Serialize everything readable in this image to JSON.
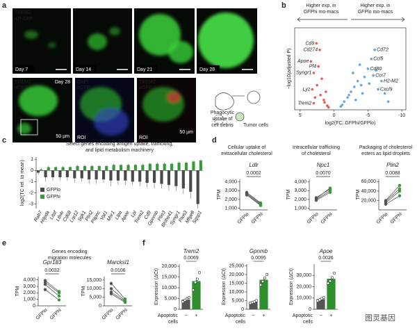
{
  "panel_a": {
    "label": "a",
    "legend": [
      "TREM2",
      "KP-GFP"
    ],
    "days": [
      "Day 7",
      "Day 14",
      "Day 21",
      "Day 28"
    ],
    "zoom_day": "Day 28",
    "zoom_legends": [
      [
        "TREM2",
        "aGFP"
      ],
      [
        "DAPI",
        "aGFP"
      ],
      [
        "TREM2",
        "aGFP"
      ]
    ],
    "roi": [
      "ROI",
      "ROI"
    ],
    "scale_bars": [
      "50 µm",
      "50 µm"
    ],
    "schematic": {
      "uptake": [
        "Phagocytic",
        "uptake of",
        "cell debris"
      ],
      "tumor": "Tumor cells"
    }
  },
  "watermark": "图灵基因",
  "chart_data": [
    {
      "type": "volcano",
      "panel": "b",
      "left_note": [
        "Higher exp. in",
        "GFPhi mo-macs"
      ],
      "right_note": [
        "Higher exp. in",
        "GFPlo mo-macs"
      ],
      "y_label": "−log10(adjusted P)",
      "x_label": "log2(FC: GFPhi/GFPlo)",
      "xlim": [
        5.8,
        -10.6
      ],
      "xticks": [
        5,
        0,
        -5,
        -10
      ],
      "ylim": [
        0,
        100
      ],
      "x": [
        2.6,
        2.1,
        3.4,
        2.3,
        3.0,
        3.2,
        3.0,
        1.0,
        1.5,
        2.0,
        2.5,
        1.2,
        0.8,
        1.8,
        2.8,
        1.4,
        -6.0,
        -5.5,
        -5.0,
        -5.8,
        -7.0,
        -6.5,
        -1.0,
        -1.5,
        -2.0,
        -2.5,
        -3.0,
        -3.5,
        -4.0,
        -4.5,
        -1.2,
        -2.2,
        -3.2,
        -4.2,
        -5.2,
        -6.2,
        -7.5,
        -8.0,
        -2.8,
        -3.8
      ],
      "values": [
        81,
        73,
        59,
        53,
        45,
        25,
        8,
        5,
        12,
        18,
        30,
        22,
        3,
        38,
        15,
        9,
        73,
        62,
        50,
        42,
        35,
        25,
        4,
        10,
        15,
        22,
        28,
        35,
        30,
        40,
        6,
        18,
        12,
        20,
        32,
        48,
        20,
        10,
        45,
        55
      ],
      "labels": [
        "Cd9",
        "Cd274",
        "Apoe",
        "Pf4",
        "Syngr1",
        "Lyz",
        "Trem2",
        null,
        null,
        null,
        null,
        null,
        null,
        null,
        null,
        null,
        "Cd72",
        "Ccl5",
        "Cd80",
        "Ccr7",
        "H2-M2",
        "Cxcl9",
        null,
        null,
        null,
        null,
        null,
        null,
        null,
        null,
        null,
        null,
        null,
        null,
        null,
        null,
        null,
        null,
        null,
        null
      ],
      "colors": {
        "positive": "#e0352b",
        "negative": "#3d8fd9"
      }
    },
    {
      "type": "bar",
      "panel": "c",
      "title": [
        "Select genes encoding antigen uptake, trafficking,",
        "and lipid metabolism machinery"
      ],
      "y_label": "log2(TC rel. to mean)",
      "categories": [
        "Rab7",
        "Hilpda",
        "Litaf",
        "Ltb4r",
        "Cd68",
        "Lrp12",
        "Sgk1",
        "Plin2",
        "Pitpnc",
        "Vat1",
        "Msr1",
        "Lipa",
        "Apoe",
        "Lpl",
        "Trem2",
        "Cd9",
        "Gpnmb",
        "Plin3",
        "Bhlhe41",
        "Syngr1",
        "Plxn3",
        "Mfge8",
        "Sqsp1"
      ],
      "series": [
        {
          "name": "GFPlo",
          "color": "#4a4a4a",
          "values": [
            -0.2,
            -0.6,
            -0.6,
            -0.6,
            -0.6,
            -0.7,
            -0.7,
            -0.8,
            -0.8,
            -0.8,
            -0.9,
            -0.9,
            -0.9,
            -1.0,
            -1.0,
            -1.1,
            -1.1,
            -1.2,
            -1.3,
            -1.4,
            -1.6,
            -1.9,
            -3.0
          ],
          "errors": [
            0.2,
            0.4,
            0.3,
            0.3,
            0.3,
            0.4,
            0.3,
            0.4,
            0.4,
            0.3,
            0.5,
            0.4,
            0.4,
            0.3,
            0.4,
            0.4,
            0.5,
            0.4,
            0.5,
            0.4,
            0.5,
            0.6,
            0.4
          ]
        },
        {
          "name": "GFPhi",
          "color": "#3a9a3a",
          "values": [
            0.1,
            0.3,
            0.3,
            0.3,
            0.3,
            0.4,
            0.4,
            0.4,
            0.4,
            0.4,
            0.5,
            0.5,
            0.5,
            0.5,
            0.5,
            0.6,
            0.6,
            0.6,
            0.6,
            0.7,
            0.7,
            0.8,
            0.9
          ],
          "errors": [
            0.1,
            0.1,
            0.1,
            0.1,
            0.1,
            0.1,
            0.1,
            0.1,
            0.1,
            0.1,
            0.1,
            0.1,
            0.1,
            0.1,
            0.1,
            0.1,
            0.1,
            0.1,
            0.1,
            0.1,
            0.1,
            0.1,
            0.1
          ]
        }
      ],
      "ylim": [
        -3.4,
        1.2
      ],
      "yticks": [
        1,
        0,
        -1,
        -2,
        -3
      ]
    },
    {
      "type": "paired",
      "panel": "d",
      "title": [
        "Cellular uptake of",
        "extracellular cholesterol"
      ],
      "gene": "Ldlr",
      "y_label": "TPM",
      "categories": [
        "GFPlo",
        "GFPhi"
      ],
      "colors": [
        "#555555",
        "#3a9a3a"
      ],
      "pairs": [
        [
          2800,
          1600
        ],
        [
          2700,
          1500
        ],
        [
          2600,
          1400
        ],
        [
          2500,
          1300
        ]
      ],
      "ylim": [
        800,
        4300
      ],
      "yticks": [
        {
          "value": 1000,
          "label": "1,000"
        },
        {
          "value": 2000,
          "label": "2,000"
        },
        {
          "value": 3000,
          "label": "3,000"
        },
        {
          "value": 4000,
          "label": "4,000"
        }
      ],
      "p_value": "0.0002"
    },
    {
      "type": "paired",
      "title": [
        "Intracellular trafficking",
        "of cholesterol"
      ],
      "gene": "Npc1",
      "y_label": "TPM",
      "categories": [
        "GFPlo",
        "GFPhi"
      ],
      "colors": [
        "#555555",
        "#3a9a3a"
      ],
      "pairs": [
        [
          1900,
          2800
        ],
        [
          2000,
          3000
        ],
        [
          2200,
          3200
        ],
        [
          2100,
          3300
        ]
      ],
      "ylim": [
        800,
        4300
      ],
      "yticks": [
        {
          "value": 1000,
          "label": "1,000"
        },
        {
          "value": 2000,
          "label": "2,000"
        },
        {
          "value": 3000,
          "label": "3,000"
        },
        {
          "value": 4000,
          "label": "4,000"
        }
      ],
      "p_value": "0.0070"
    },
    {
      "type": "paired",
      "title": [
        "Packaging of cholesterol",
        "esters as lipid droplets"
      ],
      "gene": "Plin2",
      "y_label": "TPM",
      "categories": [
        "GFPlo",
        "GFPhi"
      ],
      "colors": [
        "#555555",
        "#3a9a3a"
      ],
      "pairs": [
        [
          12000,
          30000
        ],
        [
          15000,
          40000
        ],
        [
          18000,
          45000
        ],
        [
          20000,
          52000
        ]
      ],
      "ylim": [
        0,
        65000
      ],
      "yticks": [
        {
          "value": 20000,
          "label": "20,000"
        },
        {
          "value": 40000,
          "label": "40,000"
        },
        {
          "value": 60000,
          "label": "60,000"
        }
      ],
      "p_value": "0.0088"
    },
    {
      "type": "paired",
      "panel": "e",
      "title": [
        "Genes encoding",
        "migration molecules"
      ],
      "gene": "Gpr183",
      "y_label": "TPM",
      "categories": [
        "GFPlo",
        "GFPhi"
      ],
      "colors": [
        "#555555",
        "#3a9a3a"
      ],
      "pairs": [
        [
          3900,
          2200
        ],
        [
          3600,
          2000
        ],
        [
          3300,
          1500
        ],
        [
          2500,
          900
        ]
      ],
      "ylim": [
        0,
        4500
      ],
      "yticks": [
        0,
        {
          "value": 1000,
          "label": "1,000"
        },
        {
          "value": 2000,
          "label": "2,000"
        },
        {
          "value": 3000,
          "label": "3,000"
        },
        {
          "value": 4000,
          "label": "4,000"
        }
      ],
      "p_value": "0.0032"
    },
    {
      "type": "paired",
      "gene": "Marcksl1",
      "y_label": "TPM",
      "categories": [
        "GFPlo",
        "GFPhi"
      ],
      "colors": [
        "#555555",
        "#3a9a3a"
      ],
      "pairs": [
        [
          13000,
          4000
        ],
        [
          10000,
          3000
        ],
        [
          8000,
          2500
        ],
        [
          7000,
          2000
        ]
      ],
      "ylim": [
        0,
        17000
      ],
      "yticks": [
        0,
        {
          "value": 5000,
          "label": "5,000"
        },
        {
          "value": 10000,
          "label": "10,000"
        },
        {
          "value": 15000,
          "label": "15,000"
        }
      ],
      "p_value": "0.0106"
    },
    {
      "type": "bar_points",
      "panel": "f",
      "gene": "Trem2",
      "y_label": "Expression (ΔCt)",
      "categories": [
        "−",
        "+"
      ],
      "group_label": [
        "Apoptotic",
        "cells"
      ],
      "colors": [
        "#555555",
        "#2f8f2f"
      ],
      "values": [
        4500,
        13100
      ],
      "errors": [
        450,
        1650
      ],
      "points": [
        [
          3500,
          4200,
          4800,
          5500
        ],
        [
          9000,
          12500,
          14000,
          17000
        ]
      ],
      "ylim": [
        0,
        21000
      ],
      "yticks": [
        0,
        {
          "value": 5000,
          "label": "5,000"
        },
        {
          "value": 10000,
          "label": "10,000"
        },
        {
          "value": 15000,
          "label": "15,000"
        },
        {
          "value": 20000,
          "label": "20,000"
        }
      ],
      "p_value": "0.0069"
    },
    {
      "type": "bar_points",
      "gene": "Gpnmb",
      "y_label": "Expression (ΔCt)",
      "categories": [
        "−",
        "+"
      ],
      "group_label": [
        "Apoptotic",
        "cells"
      ],
      "colors": [
        "#555555",
        "#2f8f2f"
      ],
      "values": [
        4200,
        17000
      ],
      "errors": [
        320,
        1300
      ],
      "points": [
        [
          3500,
          4000,
          4300,
          5000
        ],
        [
          14000,
          16000,
          18000,
          20000
        ]
      ],
      "ylim": [
        0,
        26000
      ],
      "yticks": [
        0,
        {
          "value": 5000,
          "label": "5,000"
        },
        {
          "value": 10000,
          "label": "10,000"
        },
        {
          "value": 15000,
          "label": "15,000"
        },
        {
          "value": 20000,
          "label": "20,000"
        },
        {
          "value": 25000,
          "label": "25,000"
        }
      ],
      "p_value": "0.0095"
    },
    {
      "type": "bar_points",
      "gene": "Apoe",
      "y_label": "Expression (ΔCt)",
      "categories": [
        "−",
        "+"
      ],
      "group_label": [
        "Apoptotic",
        "cells"
      ],
      "colors": [
        "#555555",
        "#2f8f2f"
      ],
      "values": [
        9000,
        27000
      ],
      "errors": [
        650,
        1900
      ],
      "points": [
        [
          7500,
          8500,
          9500,
          10500
        ],
        [
          23000,
          25000,
          28000,
          32000
        ]
      ],
      "ylim": [
        0,
        40000
      ],
      "yticks": [
        0,
        {
          "value": 10000,
          "label": "10,000"
        },
        {
          "value": 20000,
          "label": "20,000"
        },
        {
          "value": 30000,
          "label": "30,000"
        }
      ],
      "p_value": "0.0026"
    }
  ]
}
